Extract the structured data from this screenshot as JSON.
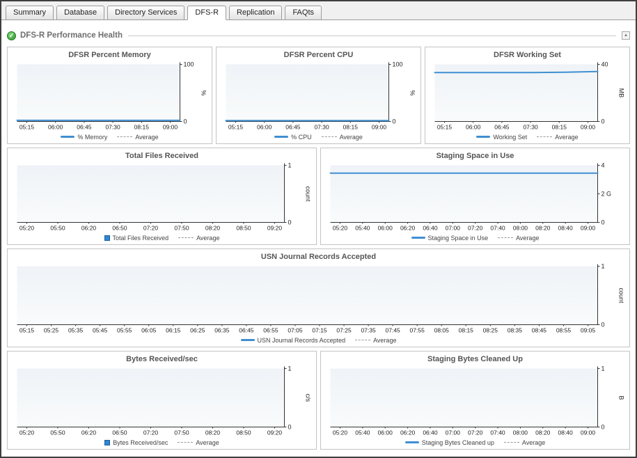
{
  "tabs": [
    {
      "label": "Summary"
    },
    {
      "label": "Database"
    },
    {
      "label": "Directory Services"
    },
    {
      "label": "DFS-R"
    },
    {
      "label": "Replication"
    },
    {
      "label": "FAQts"
    }
  ],
  "section": {
    "title": "DFS-R Performance Health",
    "status": "ok",
    "status_icon": "green-check-icon",
    "check_glyph": "✓"
  },
  "colors": {
    "series_blue": "#3f8fd2",
    "plot_bg_top": "#eff3f7",
    "plot_bg_bottom": "#f9fbfc",
    "axis": "#333333"
  },
  "chart_data": [
    {
      "type": "line",
      "title": "DFSR Percent Memory",
      "ylabel": "%",
      "ylim": [
        0,
        100
      ],
      "yticks": [
        0,
        100
      ],
      "ytick_labels": [
        "0",
        "100"
      ],
      "x": [
        "05:15",
        "06:00",
        "06:45",
        "07:30",
        "08:15",
        "09:00"
      ],
      "series": [
        {
          "name": "% Memory",
          "color": "#3f8fd2",
          "values": [
            2,
            2,
            2,
            2,
            2,
            2
          ]
        }
      ],
      "avg_label": "Average"
    },
    {
      "type": "line",
      "title": "DFSR Percent CPU",
      "ylabel": "%",
      "ylim": [
        0,
        100
      ],
      "yticks": [
        0,
        100
      ],
      "ytick_labels": [
        "0",
        "100"
      ],
      "x": [
        "05:15",
        "06:00",
        "06:45",
        "07:30",
        "08:15",
        "09:00"
      ],
      "series": [
        {
          "name": "% CPU",
          "color": "#3f8fd2",
          "values": [
            1.5,
            1.5,
            1.5,
            1.5,
            1.5,
            1.5
          ]
        }
      ],
      "avg_label": "Average"
    },
    {
      "type": "line",
      "title": "DFSR Working Set",
      "ylabel": "MB",
      "ylim": [
        0,
        40
      ],
      "yticks": [
        0,
        40
      ],
      "ytick_labels": [
        "0",
        "40"
      ],
      "x": [
        "05:15",
        "06:00",
        "06:45",
        "07:30",
        "08:15",
        "09:00"
      ],
      "series": [
        {
          "name": "Working Set",
          "color": "#3f8fd2",
          "values": [
            34.3,
            34.3,
            34.3,
            34.3,
            34.5,
            35
          ]
        }
      ],
      "avg_label": "Average"
    },
    {
      "type": "bar",
      "title": "Total Files Received",
      "ylabel": "count",
      "ylim": [
        0,
        1
      ],
      "yticks": [
        0,
        1
      ],
      "ytick_labels": [
        "0",
        "1"
      ],
      "x": [
        "05:20",
        "05:50",
        "06:20",
        "06:50",
        "07:20",
        "07:50",
        "08:20",
        "08:50",
        "09:20"
      ],
      "series": [
        {
          "name": "Total Files Received",
          "color": "#2f87d2",
          "values": [
            0,
            0,
            0,
            0,
            0,
            0,
            0,
            0,
            0
          ]
        }
      ],
      "avg_label": "Average"
    },
    {
      "type": "line",
      "title": "Staging Space in Use",
      "ylabel": "",
      "ylim": [
        0,
        4
      ],
      "yticks": [
        0,
        2,
        4
      ],
      "ytick_labels": [
        "0",
        "2 G",
        "4"
      ],
      "x": [
        "05:20",
        "05:40",
        "06:00",
        "06:20",
        "06:40",
        "07:00",
        "07:20",
        "07:40",
        "08:00",
        "08:20",
        "08:40",
        "09:00"
      ],
      "series": [
        {
          "name": "Staging Space in Use",
          "color": "#3f8fd2",
          "values": [
            3.45,
            3.45,
            3.45,
            3.45,
            3.45,
            3.45,
            3.45,
            3.45,
            3.45,
            3.45,
            3.45,
            3.45
          ]
        }
      ],
      "avg_label": "Average"
    },
    {
      "type": "line",
      "title": "USN Journal Records Accepted",
      "ylabel": "count",
      "ylim": [
        0,
        1
      ],
      "yticks": [
        0,
        1
      ],
      "ytick_labels": [
        "0",
        "1"
      ],
      "x": [
        "05:15",
        "05:25",
        "05:35",
        "05:45",
        "05:55",
        "06:05",
        "06:15",
        "06:25",
        "06:35",
        "06:45",
        "06:55",
        "07:05",
        "07:15",
        "07:25",
        "07:35",
        "07:45",
        "07:55",
        "08:05",
        "08:15",
        "08:25",
        "08:35",
        "08:45",
        "08:55",
        "09:05"
      ],
      "series": [
        {
          "name": "USN Journal Records Accepted",
          "color": "#3f8fd2",
          "values": [
            0,
            0,
            0,
            0,
            0,
            0,
            0,
            0,
            0,
            0,
            0,
            0,
            0,
            0,
            0,
            0,
            0,
            0,
            0,
            0,
            0,
            0,
            0,
            0
          ]
        }
      ],
      "avg_label": "Average"
    },
    {
      "type": "bar",
      "title": "Bytes Received/sec",
      "ylabel": "c/s",
      "ylim": [
        0,
        1
      ],
      "yticks": [
        0,
        1
      ],
      "ytick_labels": [
        "0",
        "1"
      ],
      "x": [
        "05:20",
        "05:50",
        "06:20",
        "06:50",
        "07:20",
        "07:50",
        "08:20",
        "08:50",
        "09:20"
      ],
      "series": [
        {
          "name": "Bytes Received/sec",
          "color": "#2f87d2",
          "values": [
            0,
            0,
            0,
            0,
            0,
            0,
            0,
            0,
            0
          ]
        }
      ],
      "avg_label": "Average"
    },
    {
      "type": "line",
      "title": "Staging Bytes Cleaned Up",
      "ylabel": "B",
      "ylim": [
        0,
        1
      ],
      "yticks": [
        0,
        1
      ],
      "ytick_labels": [
        "0",
        "1"
      ],
      "x": [
        "05:20",
        "05:40",
        "06:00",
        "06:20",
        "06:40",
        "07:00",
        "07:20",
        "07:40",
        "08:00",
        "08:20",
        "08:40",
        "09:00"
      ],
      "series": [
        {
          "name": "Staging Bytes Cleaned up",
          "color": "#3f8fd2",
          "values": [
            0,
            0,
            0,
            0,
            0,
            0,
            0,
            0,
            0,
            0,
            0,
            0
          ]
        }
      ],
      "avg_label": "Average"
    }
  ]
}
